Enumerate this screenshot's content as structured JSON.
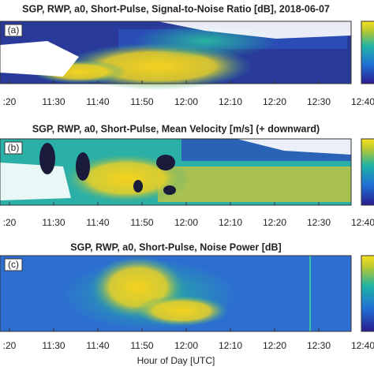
{
  "chart_data": [
    {
      "type": "heatmap",
      "title": "SGP, RWP, a0, Short-Pulse, Signal-to-Noise Ratio [dB], 2018-06-07",
      "panel_label": "(a)",
      "categories": [
        ":20",
        "11:30",
        "11:40",
        "11:50",
        "12:00",
        "12:10",
        "12:20",
        "12:30",
        "12:40"
      ]
    },
    {
      "type": "heatmap",
      "title": "SGP, RWP, a0, Short-Pulse, Mean Velocity [m/s] (+ downward)",
      "panel_label": "(b)",
      "categories": [
        ":20",
        "11:30",
        "11:40",
        "11:50",
        "12:00",
        "12:10",
        "12:20",
        "12:30",
        "12:40"
      ]
    },
    {
      "type": "heatmap",
      "title": "SGP, RWP, a0, Short-Pulse, Noise Power [dB]",
      "panel_label": "(c)",
      "categories": [
        ":20",
        "11:30",
        "11:40",
        "11:50",
        "12:00",
        "12:10",
        "12:20",
        "12:30",
        "12:40"
      ],
      "x_label": "Hour of Day [UTC]"
    }
  ]
}
